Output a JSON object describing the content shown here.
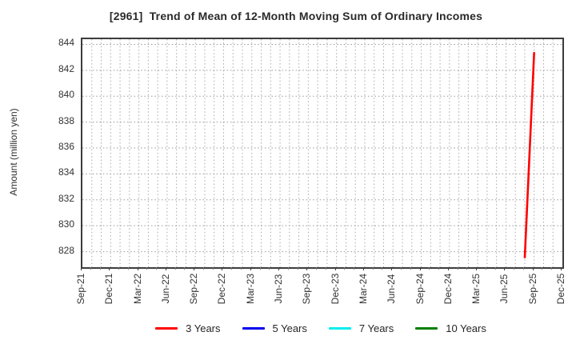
{
  "chart_data": {
    "type": "line",
    "title": "[2961]  Trend of Mean of 12-Month Moving Sum of Ordinary Incomes",
    "ylabel": "Amount (million yen)",
    "xlabel": "",
    "x_tick_labels": [
      "Sep-21",
      "Dec-21",
      "Mar-22",
      "Jun-22",
      "Sep-22",
      "Dec-22",
      "Mar-23",
      "Jun-23",
      "Sep-23",
      "Dec-23",
      "Mar-24",
      "Jun-24",
      "Sep-24",
      "Dec-24",
      "Mar-25",
      "Jun-25",
      "Sep-25",
      "Dec-25"
    ],
    "x_months_total": 51,
    "x_major_tick_every_months": 3,
    "y_ticks": [
      828,
      830,
      832,
      834,
      836,
      838,
      840,
      842,
      844
    ],
    "ylim": [
      826.8,
      844.4
    ],
    "grid": "dotted, monthly vertical and every 2 units horizontal",
    "legend_position": "bottom",
    "colors": {
      "grid_horizontal": "#999999",
      "grid_vertical": "#a8a8a8",
      "axis_border": "#3c3c3c",
      "text": "#333333"
    },
    "series": [
      {
        "name": "3 Years",
        "color": "#ff0000",
        "points": [
          {
            "x": "Aug-25",
            "month_index": 47,
            "value": 827.5
          },
          {
            "x": "Sep-25",
            "month_index": 48,
            "value": 843.4
          }
        ]
      },
      {
        "name": "5 Years",
        "color": "#0000ee",
        "points": []
      },
      {
        "name": "7 Years",
        "color": "#00eeee",
        "points": []
      },
      {
        "name": "10 Years",
        "color": "#008000",
        "points": []
      }
    ]
  }
}
